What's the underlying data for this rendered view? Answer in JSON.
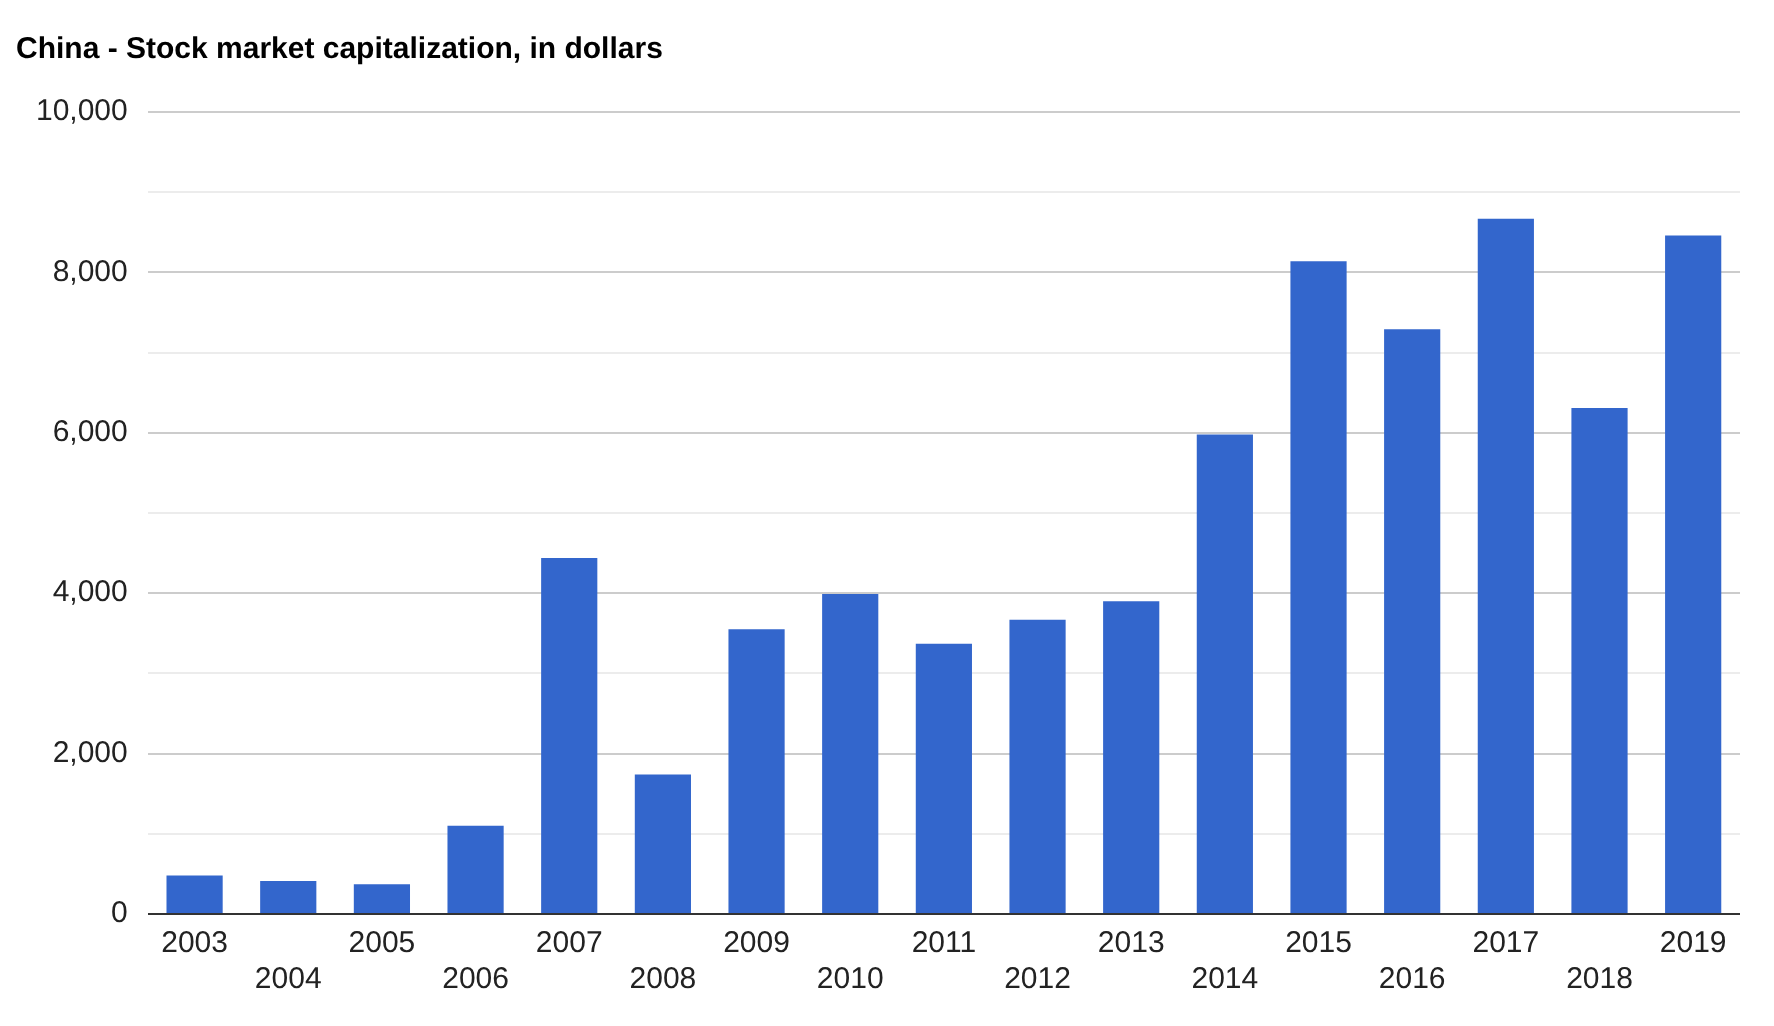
{
  "chart_data": {
    "type": "bar",
    "title": "China - Stock market capitalization, in dollars",
    "categories": [
      "2003",
      "2004",
      "2005",
      "2006",
      "2007",
      "2008",
      "2009",
      "2010",
      "2011",
      "2012",
      "2013",
      "2014",
      "2015",
      "2016",
      "2017",
      "2018",
      "2019"
    ],
    "values": [
      480,
      410,
      370,
      1100,
      4440,
      1740,
      3550,
      3990,
      3370,
      3670,
      3900,
      5980,
      8140,
      7290,
      8670,
      6310,
      8460
    ],
    "color": "#3366cc",
    "ylim": [
      0,
      10000
    ],
    "yticks": [
      0,
      {
        "value": 1000,
        "label": null
      },
      {
        "value": 2000,
        "label": "2,000"
      },
      {
        "value": 3000,
        "label": null
      },
      {
        "value": 4000,
        "label": "4,000"
      },
      {
        "value": 5000,
        "label": null
      },
      {
        "value": 6000,
        "label": "6,000"
      },
      {
        "value": 7000,
        "label": null
      },
      {
        "value": 8000,
        "label": "8,000"
      },
      {
        "value": 9000,
        "label": null
      },
      {
        "value": 10000,
        "label": "10,000"
      }
    ],
    "grid": "y"
  }
}
